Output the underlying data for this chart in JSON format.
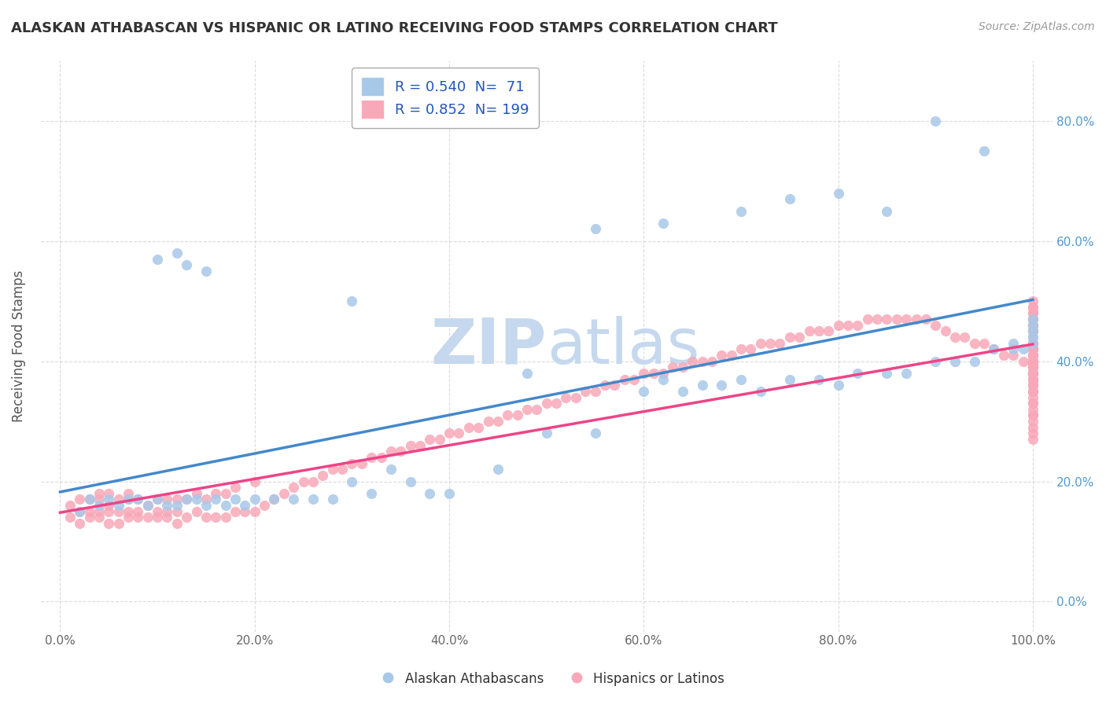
{
  "title": "ALASKAN ATHABASCAN VS HISPANIC OR LATINO RECEIVING FOOD STAMPS CORRELATION CHART",
  "source": "Source: ZipAtlas.com",
  "ylabel": "Receiving Food Stamps",
  "xlabel": "",
  "xlim": [
    0,
    1
  ],
  "ylim": [
    -0.05,
    0.9
  ],
  "blue_R": 0.54,
  "blue_N": 71,
  "pink_R": 0.852,
  "pink_N": 199,
  "blue_color": "#a8c8e8",
  "pink_color": "#f8a8b8",
  "blue_line_color": "#4488cc",
  "pink_line_color": "#ee4488",
  "title_color": "#333333",
  "source_color": "#999999",
  "legend_text_color": "#2255bb",
  "watermark_color": "#ddeeff",
  "background_color": "#ffffff",
  "grid_color": "#cccccc",
  "ytick_labels": [
    "0.0%",
    "20.0%",
    "40.0%",
    "60.0%",
    "80.0%"
  ],
  "ytick_vals": [
    0.0,
    0.2,
    0.4,
    0.6,
    0.8
  ],
  "xtick_labels": [
    "0.0%",
    "20.0%",
    "40.0%",
    "60.0%",
    "80.0%",
    "100.0%"
  ],
  "xtick_vals": [
    0.0,
    0.2,
    0.4,
    0.6,
    0.8,
    1.0
  ],
  "blue_scatter_x": [
    0.02,
    0.03,
    0.04,
    0.05,
    0.06,
    0.07,
    0.08,
    0.09,
    0.1,
    0.11,
    0.12,
    0.13,
    0.14,
    0.15,
    0.16,
    0.17,
    0.18,
    0.19,
    0.2,
    0.22,
    0.24,
    0.26,
    0.28,
    0.3,
    0.32,
    0.34,
    0.36,
    0.38,
    0.4,
    0.45,
    0.5,
    0.55,
    0.6,
    0.62,
    0.64,
    0.66,
    0.68,
    0.7,
    0.72,
    0.75,
    0.78,
    0.8,
    0.82,
    0.85,
    0.87,
    0.9,
    0.92,
    0.94,
    0.96,
    0.98,
    0.99,
    1.0,
    1.0,
    1.0,
    1.0,
    1.0,
    0.13,
    0.15,
    0.55,
    0.62,
    0.7,
    0.75,
    0.8,
    0.85,
    0.9,
    0.95,
    0.98,
    0.1,
    0.12,
    0.3,
    0.48
  ],
  "blue_scatter_y": [
    0.15,
    0.17,
    0.16,
    0.17,
    0.16,
    0.17,
    0.17,
    0.16,
    0.17,
    0.16,
    0.16,
    0.17,
    0.17,
    0.16,
    0.17,
    0.16,
    0.17,
    0.16,
    0.17,
    0.17,
    0.17,
    0.17,
    0.17,
    0.2,
    0.18,
    0.22,
    0.2,
    0.18,
    0.18,
    0.22,
    0.28,
    0.28,
    0.35,
    0.37,
    0.35,
    0.36,
    0.36,
    0.37,
    0.35,
    0.37,
    0.37,
    0.36,
    0.38,
    0.38,
    0.38,
    0.4,
    0.4,
    0.4,
    0.42,
    0.42,
    0.42,
    0.43,
    0.44,
    0.45,
    0.46,
    0.47,
    0.56,
    0.55,
    0.62,
    0.63,
    0.65,
    0.67,
    0.68,
    0.65,
    0.8,
    0.75,
    0.43,
    0.57,
    0.58,
    0.5,
    0.38
  ],
  "pink_scatter_x": [
    0.01,
    0.01,
    0.02,
    0.02,
    0.02,
    0.03,
    0.03,
    0.03,
    0.04,
    0.04,
    0.04,
    0.04,
    0.05,
    0.05,
    0.05,
    0.05,
    0.06,
    0.06,
    0.06,
    0.07,
    0.07,
    0.07,
    0.07,
    0.08,
    0.08,
    0.08,
    0.09,
    0.09,
    0.1,
    0.1,
    0.1,
    0.11,
    0.11,
    0.11,
    0.12,
    0.12,
    0.12,
    0.13,
    0.13,
    0.14,
    0.14,
    0.15,
    0.15,
    0.16,
    0.16,
    0.17,
    0.17,
    0.18,
    0.18,
    0.19,
    0.2,
    0.2,
    0.21,
    0.22,
    0.23,
    0.24,
    0.25,
    0.26,
    0.27,
    0.28,
    0.29,
    0.3,
    0.31,
    0.32,
    0.33,
    0.34,
    0.35,
    0.36,
    0.37,
    0.38,
    0.39,
    0.4,
    0.41,
    0.42,
    0.43,
    0.44,
    0.45,
    0.46,
    0.47,
    0.48,
    0.49,
    0.5,
    0.51,
    0.52,
    0.53,
    0.54,
    0.55,
    0.56,
    0.57,
    0.58,
    0.59,
    0.6,
    0.61,
    0.62,
    0.63,
    0.64,
    0.65,
    0.66,
    0.67,
    0.68,
    0.69,
    0.7,
    0.71,
    0.72,
    0.73,
    0.74,
    0.75,
    0.76,
    0.77,
    0.78,
    0.79,
    0.8,
    0.81,
    0.82,
    0.83,
    0.84,
    0.85,
    0.86,
    0.87,
    0.88,
    0.89,
    0.9,
    0.91,
    0.92,
    0.93,
    0.94,
    0.95,
    0.96,
    0.97,
    0.98,
    0.99,
    1.0,
    1.0,
    1.0,
    1.0,
    1.0,
    1.0,
    1.0,
    1.0,
    1.0,
    1.0,
    1.0,
    1.0,
    1.0,
    1.0,
    1.0,
    1.0,
    1.0,
    1.0,
    1.0,
    1.0,
    1.0,
    1.0,
    1.0,
    1.0,
    1.0,
    1.0,
    1.0,
    1.0,
    1.0,
    1.0,
    1.0,
    1.0,
    1.0,
    1.0,
    1.0,
    1.0,
    1.0,
    1.0,
    1.0,
    1.0,
    1.0,
    1.0,
    1.0,
    1.0,
    1.0,
    1.0,
    1.0,
    1.0,
    1.0,
    1.0,
    1.0,
    1.0,
    1.0,
    1.0,
    1.0,
    1.0,
    1.0,
    1.0,
    1.0,
    1.0,
    1.0,
    1.0,
    1.0,
    1.0,
    1.0,
    1.0,
    1.0,
    1.0,
    1.0
  ],
  "pink_scatter_y": [
    0.14,
    0.16,
    0.13,
    0.15,
    0.17,
    0.14,
    0.15,
    0.17,
    0.14,
    0.15,
    0.17,
    0.18,
    0.13,
    0.15,
    0.16,
    0.18,
    0.13,
    0.15,
    0.17,
    0.14,
    0.15,
    0.17,
    0.18,
    0.14,
    0.15,
    0.17,
    0.14,
    0.16,
    0.14,
    0.15,
    0.17,
    0.14,
    0.15,
    0.17,
    0.13,
    0.15,
    0.17,
    0.14,
    0.17,
    0.15,
    0.18,
    0.14,
    0.17,
    0.14,
    0.18,
    0.14,
    0.18,
    0.15,
    0.19,
    0.15,
    0.15,
    0.2,
    0.16,
    0.17,
    0.18,
    0.19,
    0.2,
    0.2,
    0.21,
    0.22,
    0.22,
    0.23,
    0.23,
    0.24,
    0.24,
    0.25,
    0.25,
    0.26,
    0.26,
    0.27,
    0.27,
    0.28,
    0.28,
    0.29,
    0.29,
    0.3,
    0.3,
    0.31,
    0.31,
    0.32,
    0.32,
    0.33,
    0.33,
    0.34,
    0.34,
    0.35,
    0.35,
    0.36,
    0.36,
    0.37,
    0.37,
    0.38,
    0.38,
    0.38,
    0.39,
    0.39,
    0.4,
    0.4,
    0.4,
    0.41,
    0.41,
    0.42,
    0.42,
    0.43,
    0.43,
    0.43,
    0.44,
    0.44,
    0.45,
    0.45,
    0.45,
    0.46,
    0.46,
    0.46,
    0.47,
    0.47,
    0.47,
    0.47,
    0.47,
    0.47,
    0.47,
    0.46,
    0.45,
    0.44,
    0.44,
    0.43,
    0.43,
    0.42,
    0.41,
    0.41,
    0.4,
    0.27,
    0.28,
    0.29,
    0.3,
    0.31,
    0.31,
    0.32,
    0.33,
    0.33,
    0.34,
    0.35,
    0.35,
    0.36,
    0.36,
    0.37,
    0.37,
    0.38,
    0.38,
    0.39,
    0.39,
    0.4,
    0.4,
    0.41,
    0.41,
    0.42,
    0.42,
    0.43,
    0.43,
    0.35,
    0.36,
    0.37,
    0.37,
    0.38,
    0.38,
    0.39,
    0.39,
    0.4,
    0.4,
    0.41,
    0.42,
    0.43,
    0.44,
    0.45,
    0.45,
    0.46,
    0.46,
    0.47,
    0.48,
    0.45,
    0.46,
    0.47,
    0.48,
    0.49,
    0.38,
    0.39,
    0.4,
    0.41,
    0.47,
    0.48,
    0.49,
    0.5,
    0.38,
    0.38,
    0.39,
    0.4,
    0.4,
    0.41,
    0.42,
    0.45
  ]
}
